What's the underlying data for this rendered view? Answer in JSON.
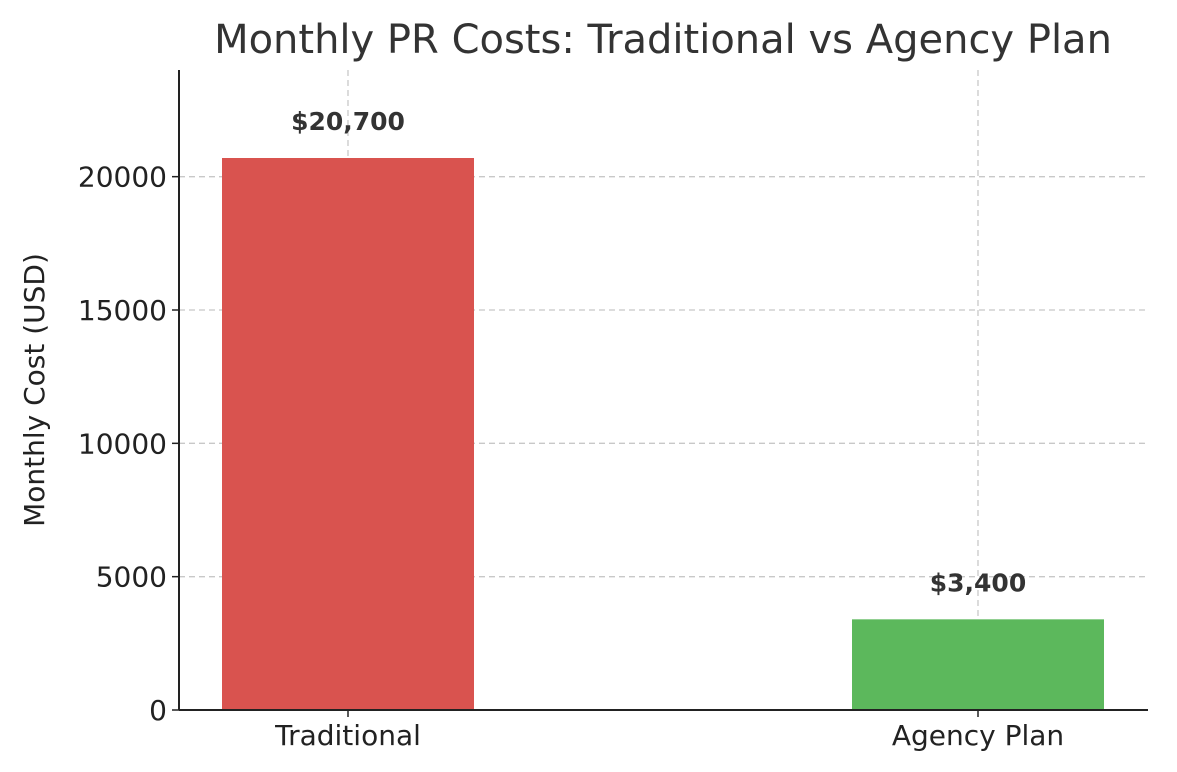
{
  "chart_data": {
    "type": "bar",
    "title": "Monthly PR Costs: Traditional vs Agency Plan",
    "xlabel": "",
    "ylabel": "Monthly Cost (USD)",
    "categories": [
      "Traditional",
      "Agency Plan"
    ],
    "values": [
      20700,
      3400
    ],
    "data_labels": [
      "$20,700",
      "$3,400"
    ],
    "colors": [
      "#d9534f",
      "#5cb85c"
    ],
    "ylim": [
      0,
      24000
    ],
    "yticks": [
      0,
      5000,
      10000,
      15000,
      20000
    ],
    "ytick_labels": [
      "0",
      "5000",
      "10000",
      "15000",
      "20000"
    ],
    "grid": true,
    "legend": null
  }
}
